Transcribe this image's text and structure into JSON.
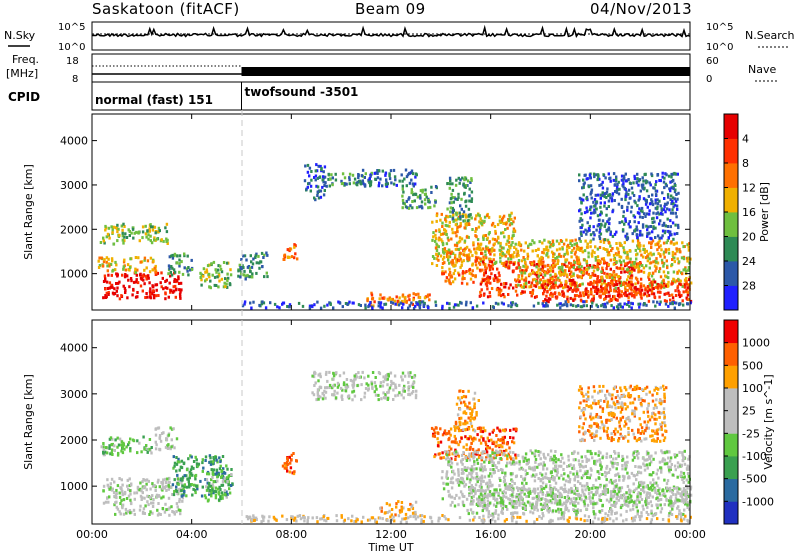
{
  "header": {
    "station": "Saskatoon (fitACF)",
    "beam": "Beam 09",
    "date": "04/Nov/2013"
  },
  "noise_panel": {
    "left_label": "N.Sky",
    "right_label": "N.Search",
    "left_ticks": [
      "10^5",
      "10^0"
    ],
    "right_ticks": [
      "10^5",
      "10^0"
    ]
  },
  "freq_panel": {
    "left_label_1": "Freq.",
    "left_label_2": "[MHz]",
    "right_label": "Nave",
    "left_ticks": [
      "18",
      "8"
    ],
    "right_ticks": [
      "60",
      "0"
    ]
  },
  "cpid": {
    "label": "CPID",
    "segments": [
      {
        "name": "normal (fast) 151",
        "start_h": 0,
        "end_h": 6
      },
      {
        "name": "twofsound -3501",
        "start_h": 6,
        "end_h": 24
      }
    ]
  },
  "time_axis": {
    "label": "Time UT",
    "ticks": [
      "00:00",
      "04:00",
      "08:00",
      "12:00",
      "16:00",
      "20:00",
      "00:00"
    ],
    "range_h": [
      0,
      24
    ]
  },
  "chart_data": [
    {
      "type": "heatmap",
      "name": "power",
      "ylabel": "Slant Range [km]",
      "ylim": [
        180,
        4600
      ],
      "yticks": [
        1000,
        2000,
        3000,
        4000
      ],
      "colorbar": {
        "label": "Power [dB]",
        "ticks": [
          "4",
          "8",
          "12",
          "16",
          "20",
          "24",
          "28"
        ],
        "colors": [
          "#2020ff",
          "#2c58a8",
          "#2e8a55",
          "#6fbf3f",
          "#f0b000",
          "#ff7000",
          "#ff3000",
          "#e60000"
        ]
      },
      "regions": [
        {
          "t": [
            0.4,
            3.6
          ],
          "r": [
            450,
            1050
          ],
          "level": 7
        },
        {
          "t": [
            0.2,
            2.6
          ],
          "r": [
            1050,
            1400
          ],
          "level": 4
        },
        {
          "t": [
            0.3,
            3.0
          ],
          "r": [
            1700,
            2150
          ],
          "level": 3
        },
        {
          "t": [
            3.0,
            4.0
          ],
          "r": [
            1000,
            1500
          ],
          "level": 2
        },
        {
          "t": [
            4.3,
            5.6
          ],
          "r": [
            700,
            1300
          ],
          "level": 3
        },
        {
          "t": [
            5.8,
            7.0
          ],
          "r": [
            900,
            1500
          ],
          "level": 2
        },
        {
          "t": [
            7.6,
            8.2
          ],
          "r": [
            1300,
            1700
          ],
          "level": 5
        },
        {
          "t": [
            8.5,
            9.3
          ],
          "r": [
            2700,
            3500
          ],
          "level": 1
        },
        {
          "t": [
            9.3,
            11.2
          ],
          "r": [
            3000,
            3300
          ],
          "level": 2
        },
        {
          "t": [
            10.5,
            13.0
          ],
          "r": [
            3000,
            3400
          ],
          "level": 1
        },
        {
          "t": [
            12.4,
            13.8
          ],
          "r": [
            2500,
            3000
          ],
          "level": 2
        },
        {
          "t": [
            11.0,
            13.5
          ],
          "r": [
            300,
            600
          ],
          "level": 5
        },
        {
          "t": [
            13.6,
            17.0
          ],
          "r": [
            1200,
            2400
          ],
          "level": 4
        },
        {
          "t": [
            14.0,
            16.0
          ],
          "r": [
            800,
            1600
          ],
          "level": 5
        },
        {
          "t": [
            15.5,
            22.0
          ],
          "r": [
            500,
            1300
          ],
          "level": 6
        },
        {
          "t": [
            17.0,
            24.0
          ],
          "r": [
            700,
            1800
          ],
          "level": 4
        },
        {
          "t": [
            18.0,
            24.0
          ],
          "r": [
            400,
            900
          ],
          "level": 6
        },
        {
          "t": [
            14.2,
            15.2
          ],
          "r": [
            2200,
            3200
          ],
          "level": 2
        },
        {
          "t": [
            19.5,
            23.5
          ],
          "r": [
            1800,
            3300
          ],
          "level": 1
        },
        {
          "t": [
            6.0,
            24.0
          ],
          "r": [
            250,
            400
          ],
          "level": 1
        }
      ]
    },
    {
      "type": "heatmap",
      "name": "velocity",
      "ylabel": "Slant Range [km]",
      "ylim": [
        180,
        4600
      ],
      "yticks": [
        1000,
        2000,
        3000,
        4000
      ],
      "colorbar": {
        "label": "Velocity [m s^-1]",
        "ticks": [
          "1000",
          "500",
          "100",
          "25",
          "-25",
          "-100",
          "-500",
          "-1000"
        ],
        "colors": [
          "#2030c0",
          "#2a6aa0",
          "#3aa050",
          "#60c840",
          "#bebebe",
          "#bebebe",
          "#ffa000",
          "#ff6000",
          "#f00000"
        ]
      },
      "regions": [
        {
          "t": [
            0.4,
            3.6
          ],
          "r": [
            400,
            1200
          ],
          "level": 4
        },
        {
          "t": [
            0.3,
            2.4
          ],
          "r": [
            1700,
            2100
          ],
          "level": 3
        },
        {
          "t": [
            2.5,
            3.4
          ],
          "r": [
            1800,
            2300
          ],
          "level": 4
        },
        {
          "t": [
            3.2,
            5.6
          ],
          "r": [
            800,
            1700
          ],
          "level": 2
        },
        {
          "t": [
            4.5,
            5.6
          ],
          "r": [
            700,
            1300
          ],
          "level": 3
        },
        {
          "t": [
            7.6,
            8.2
          ],
          "r": [
            1300,
            1800
          ],
          "level": 7
        },
        {
          "t": [
            8.8,
            13.0
          ],
          "r": [
            2900,
            3500
          ],
          "level": 4
        },
        {
          "t": [
            11.5,
            13.0
          ],
          "r": [
            400,
            700
          ],
          "level": 6
        },
        {
          "t": [
            13.6,
            17.0
          ],
          "r": [
            1600,
            2300
          ],
          "level": 7
        },
        {
          "t": [
            14.0,
            24.0
          ],
          "r": [
            600,
            1800
          ],
          "level": 4
        },
        {
          "t": [
            15.0,
            24.0
          ],
          "r": [
            400,
            1000
          ],
          "level": 4
        },
        {
          "t": [
            14.5,
            15.5
          ],
          "r": [
            2200,
            3100
          ],
          "level": 6
        },
        {
          "t": [
            19.5,
            23.0
          ],
          "r": [
            2000,
            3200
          ],
          "level": 6
        },
        {
          "t": [
            6.0,
            24.0
          ],
          "r": [
            250,
            400
          ],
          "level": 5
        }
      ]
    }
  ]
}
